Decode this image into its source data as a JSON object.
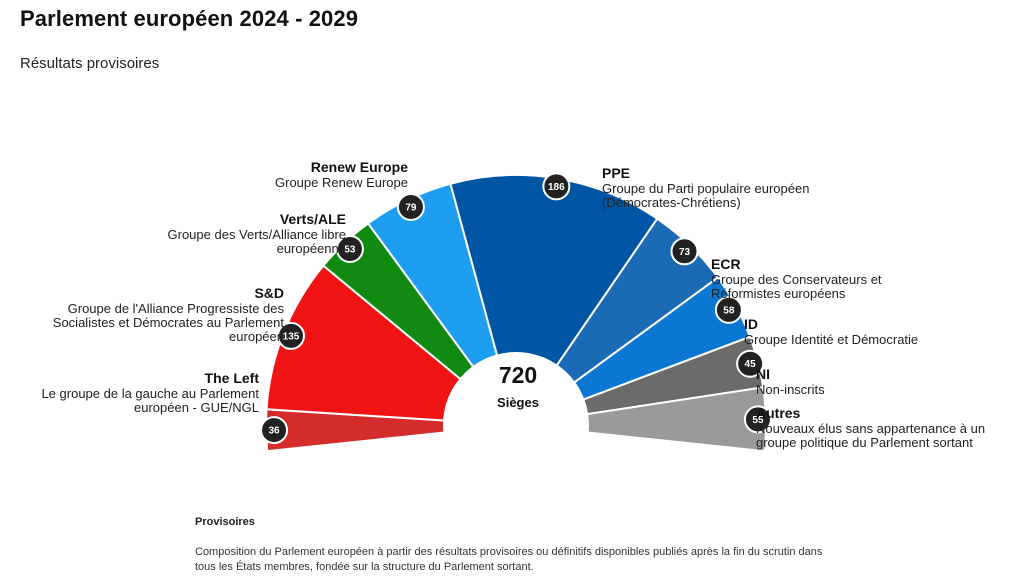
{
  "header": {
    "title": "Parlement européen 2024 - 2029",
    "subtitle": "Résultats provisoires"
  },
  "chart_data": {
    "type": "pie",
    "title": "Parlement européen 2024 - 2029",
    "subtitle": "Résultats provisoires",
    "total_seats": 720,
    "total_label": "Sièges",
    "groups": [
      {
        "name": "The Left",
        "description": "Le groupe de la gauche au Parlement européen - GUE/NGL",
        "seats": 36,
        "color": "#d62b2b"
      },
      {
        "name": "S&D",
        "description": "Groupe de l'Alliance Progressiste des Socialistes et Démocrates au Parlement européen",
        "seats": 135,
        "color": "#ef1313"
      },
      {
        "name": "Verts/ALE",
        "description": "Groupe des Verts/Alliance libre européenne",
        "seats": 53,
        "color": "#118a11"
      },
      {
        "name": "Renew Europe",
        "description": "Groupe Renew Europe",
        "seats": 79,
        "color": "#1e9ef0"
      },
      {
        "name": "PPE",
        "description": "Groupe du Parti populaire européen (Démocrates-Chrétiens)",
        "seats": 186,
        "color": "#0055a4"
      },
      {
        "name": "ECR",
        "description": "Groupe des Conservateurs et Réformistes européens",
        "seats": 73,
        "color": "#1b6ab5"
      },
      {
        "name": "ID",
        "description": "Groupe Identité et Démocratie",
        "seats": 58,
        "color": "#0a78d2"
      },
      {
        "name": "NI",
        "description": "Non-inscrits",
        "seats": 45,
        "color": "#6b6b6b"
      },
      {
        "name": "Autres",
        "description": "Nouveaux élus sans appartenance à un groupe politique du Parlement sortant",
        "seats": 55,
        "color": "#9a9a9a"
      }
    ]
  },
  "footer": {
    "title": "Provisoires",
    "text": "Composition du Parlement européen à partir des résultats provisoires ou définitifs disponibles publiés après la fin du scrutin dans tous les États membres, fondée sur la structure du Parlement sortant."
  }
}
